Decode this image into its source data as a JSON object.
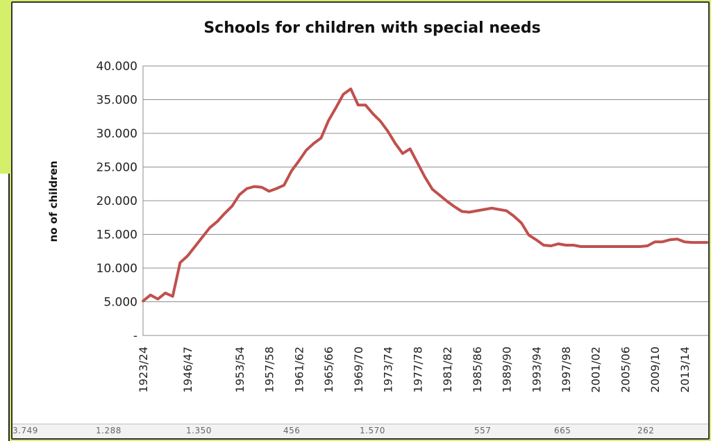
{
  "chart_data": {
    "type": "line",
    "title": "Schools for children with special needs",
    "xlabel": "",
    "ylabel": "no of children",
    "ylim": [
      0,
      40000
    ],
    "y_tick_labels": [
      "-",
      "5.000",
      "10.000",
      "15.000",
      "20.000",
      "25.000",
      "30.000",
      "35.000",
      "40.000"
    ],
    "x_tick_labels": [
      "1923/24",
      "1946/47",
      "1953/54",
      "1957/58",
      "1961/62",
      "1965/66",
      "1969/70",
      "1973/74",
      "1977/78",
      "1981/82",
      "1985/86",
      "1989/90",
      "1993/94",
      "1997/98",
      "2001/02",
      "2005/06",
      "2009/10",
      "2013/14"
    ],
    "grid": true,
    "legend": "none",
    "series": [
      {
        "color": "#c0504d",
        "x": [
          "1923/24",
          "1930/31",
          "1935/36",
          "1938/39",
          "1944/45",
          "1945/46",
          "1946/47",
          "1947/48",
          "1948/49",
          "1949/50",
          "1950/51",
          "1951/52",
          "1952/53",
          "1953/54",
          "1954/55",
          "1955/56",
          "1956/57",
          "1957/58",
          "1958/59",
          "1959/60",
          "1960/61",
          "1961/62",
          "1962/63",
          "1963/64",
          "1964/65",
          "1965/66",
          "1966/67",
          "1967/68",
          "1968/69",
          "1969/70",
          "1970/71",
          "1971/72",
          "1972/73",
          "1973/74",
          "1974/75",
          "1975/76",
          "1976/77",
          "1977/78",
          "1978/79",
          "1979/80",
          "1980/81",
          "1981/82",
          "1982/83",
          "1983/84",
          "1984/85",
          "1985/86",
          "1986/87",
          "1987/88",
          "1988/89",
          "1989/90",
          "1990/91",
          "1991/92",
          "1992/93",
          "1993/94",
          "1994/95",
          "1995/96",
          "1996/97",
          "1997/98",
          "1998/99",
          "1999/00",
          "2000/01",
          "2001/02",
          "2002/03",
          "2003/04",
          "2004/05",
          "2005/06",
          "2006/07",
          "2007/08",
          "2008/09",
          "2009/10",
          "2010/11",
          "2011/12",
          "2012/13",
          "2013/14",
          "2014/15",
          "2015/16",
          "2016/17"
        ],
        "values": [
          5100,
          6000,
          5400,
          6300,
          5800,
          10800,
          11800,
          13200,
          14600,
          16000,
          16900,
          18100,
          19200,
          20900,
          21800,
          22100,
          22000,
          21400,
          21800,
          22300,
          24400,
          25900,
          27500,
          28500,
          29300,
          31900,
          33800,
          35800,
          36600,
          34200,
          34200,
          32900,
          31800,
          30300,
          28500,
          27000,
          27700,
          25600,
          23500,
          21700,
          20800,
          19900,
          19100,
          18400,
          18300,
          18500,
          18700,
          18900,
          18700,
          18500,
          17700,
          16700,
          14900,
          14200,
          13400,
          13300,
          13600,
          13400,
          13400,
          13200,
          13200,
          13200,
          13200,
          13200,
          13200,
          13200,
          13200,
          13200,
          13300,
          13900,
          13900,
          14200,
          14300,
          13900,
          13800,
          13800,
          13800
        ]
      }
    ]
  },
  "bottom_strip": {
    "cells": [
      "3.749",
      "1.288",
      "1.350",
      "456",
      "1.570",
      "557",
      "665",
      "262"
    ]
  }
}
